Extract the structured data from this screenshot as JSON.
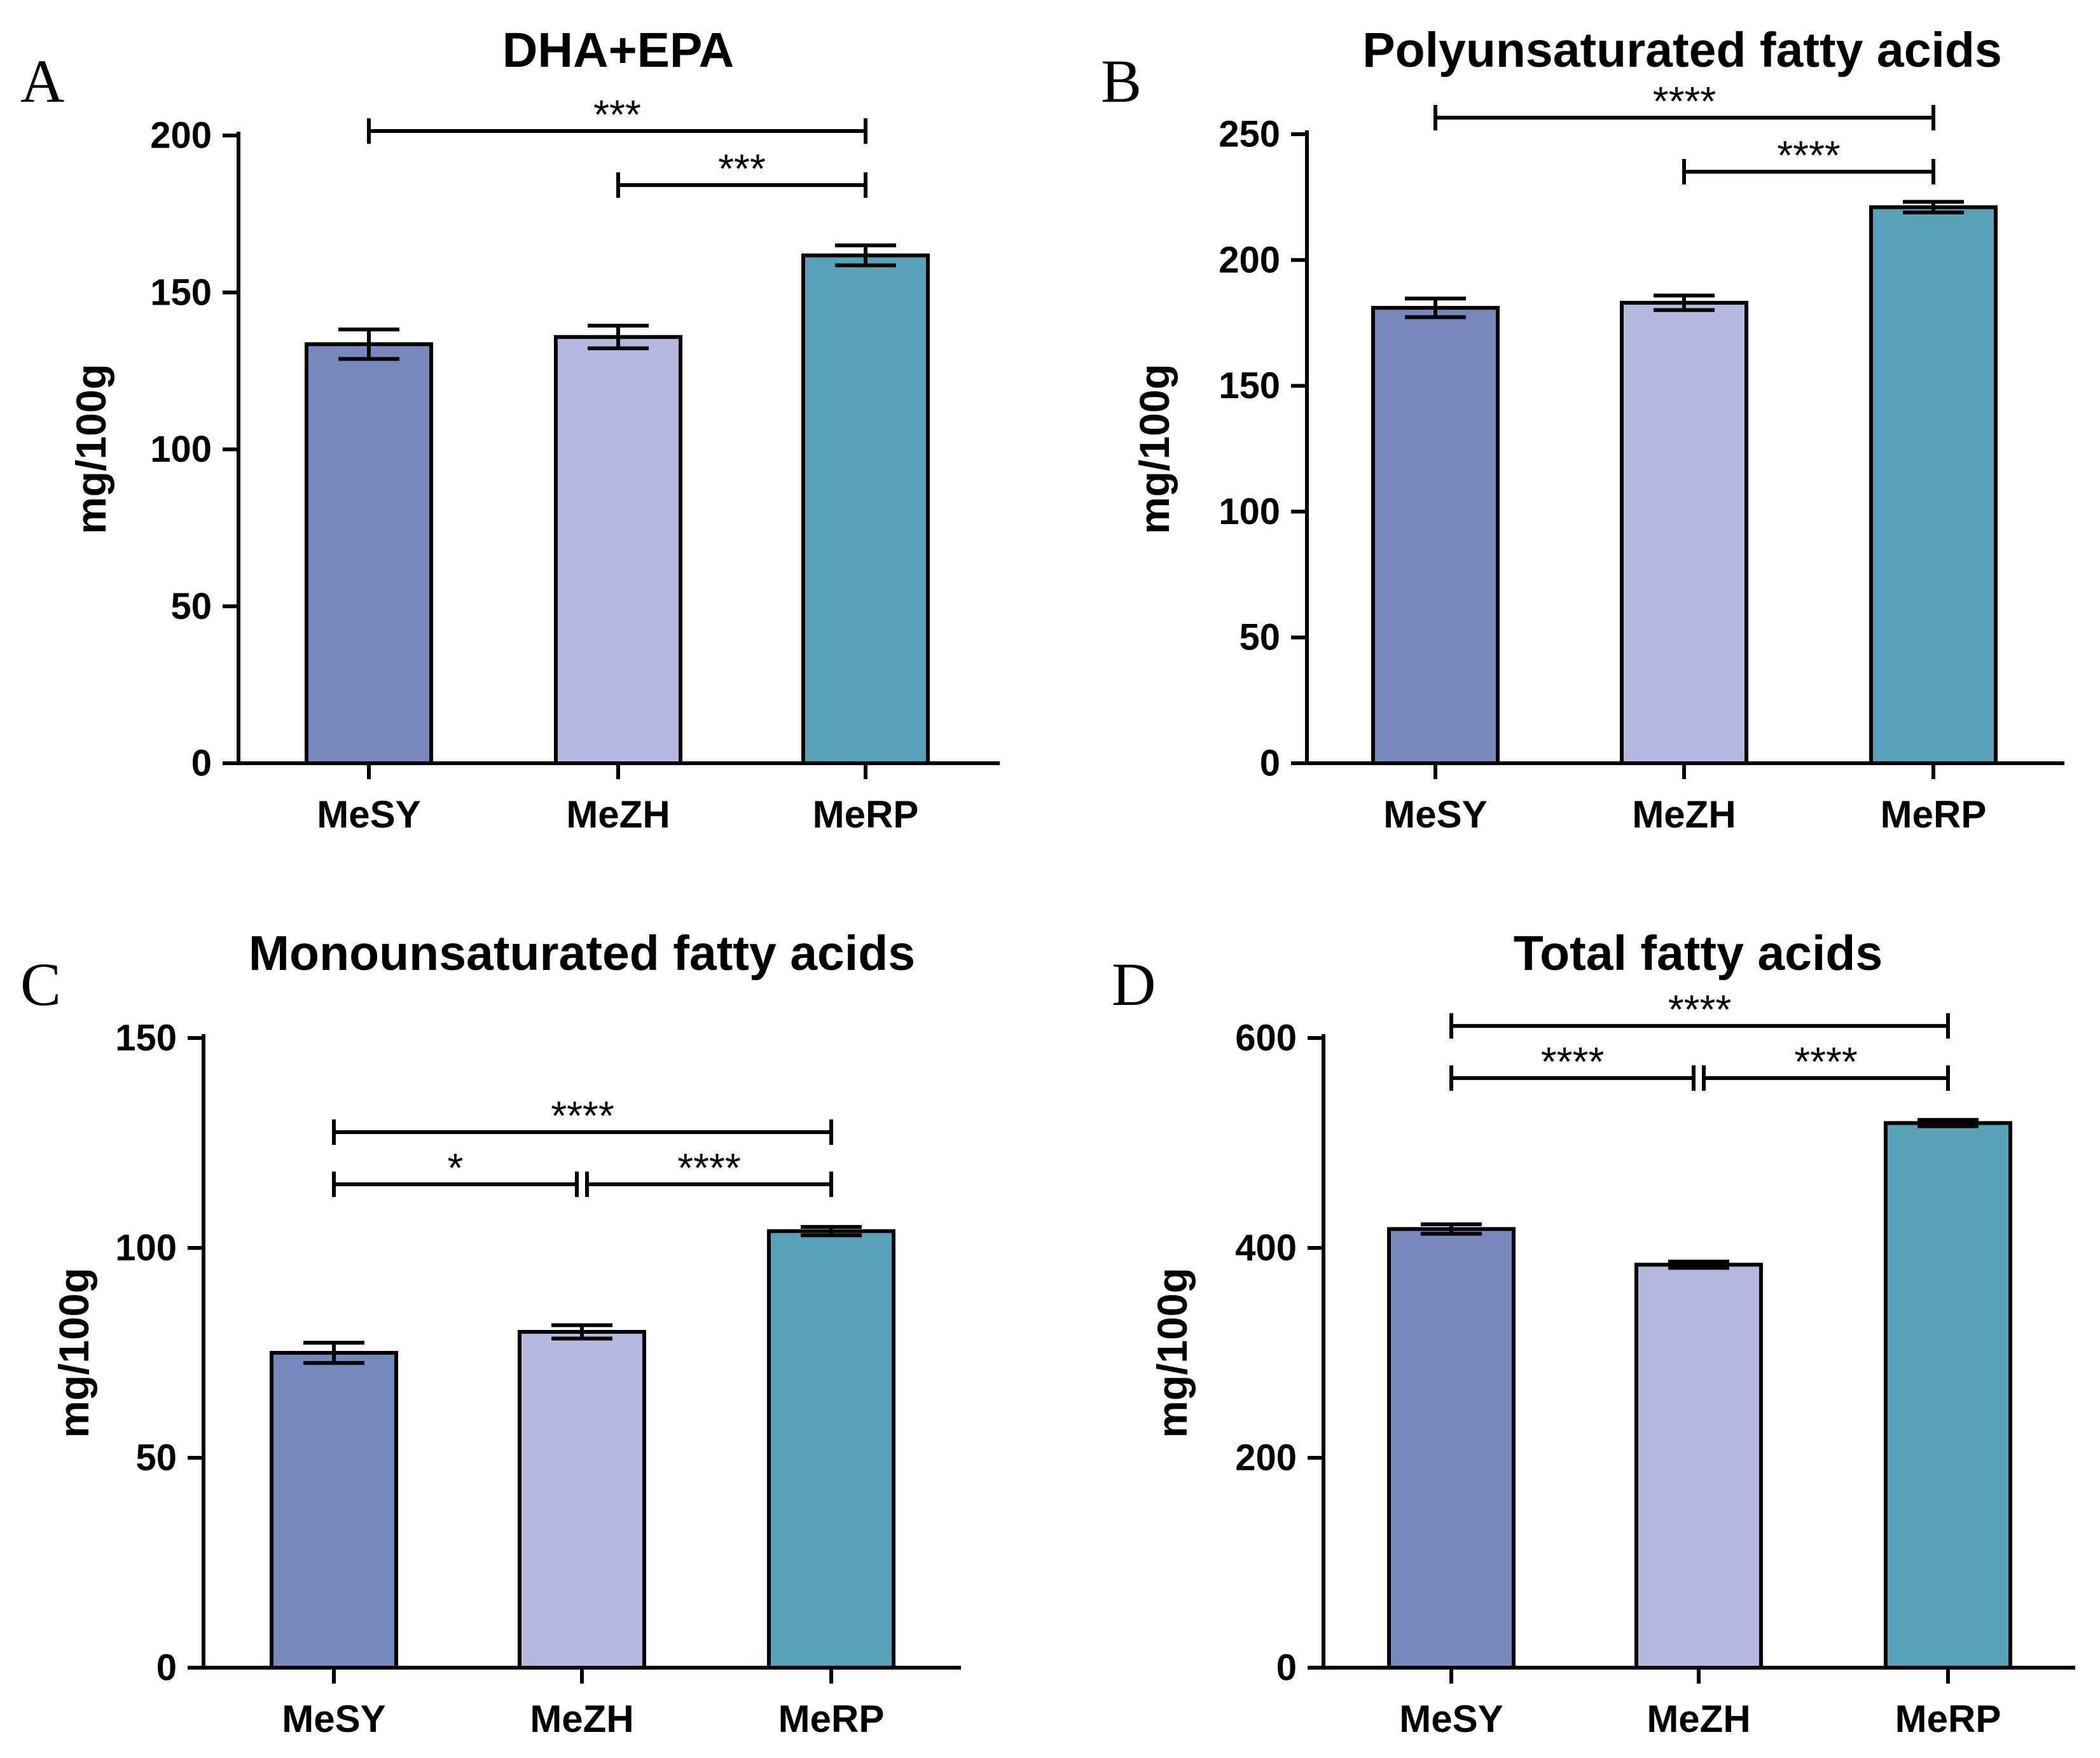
{
  "bar_colors": [
    "#7689BF",
    "#B6B8E0",
    "#56A2B8"
  ],
  "stroke_color": "#000000",
  "chart_data": [
    {
      "panel": "A",
      "type": "bar",
      "title": "DHA+EPA",
      "ylabel": "mg/100g",
      "categories": [
        "MeSY",
        "MeZH",
        "MeRP"
      ],
      "values": [
        133.5,
        135.8,
        161.8
      ],
      "errors": [
        4.7,
        3.6,
        3.2
      ],
      "ylim": [
        0,
        200
      ],
      "yticks": [
        0,
        50,
        100,
        150,
        200
      ],
      "significance": [
        {
          "between": [
            0,
            2
          ],
          "label": "***"
        },
        {
          "between": [
            1,
            2
          ],
          "label": "***"
        }
      ]
    },
    {
      "panel": "B",
      "type": "bar",
      "title": "Polyunsaturated fatty acids",
      "ylabel": "mg/100g",
      "categories": [
        "MeSY",
        "MeZH",
        "MeRP"
      ],
      "values": [
        181,
        183,
        221
      ],
      "errors": [
        3.7,
        2.9,
        2.1
      ],
      "ylim": [
        0,
        250
      ],
      "yticks": [
        0,
        50,
        100,
        150,
        200,
        250
      ],
      "significance": [
        {
          "between": [
            0,
            2
          ],
          "label": "****"
        },
        {
          "between": [
            1,
            2
          ],
          "label": "****"
        }
      ]
    },
    {
      "panel": "C",
      "type": "bar",
      "title": "Monounsaturated fatty acids",
      "ylabel": "mg/100g",
      "categories": [
        "MeSY",
        "MeZH",
        "MeRP"
      ],
      "values": [
        75,
        80,
        104
      ],
      "errors": [
        2.4,
        1.6,
        1.0
      ],
      "ylim": [
        0,
        150
      ],
      "yticks": [
        0,
        50,
        100,
        150
      ],
      "significance": [
        {
          "between": [
            0,
            2
          ],
          "label": "****"
        },
        {
          "between": [
            0,
            1
          ],
          "label": "*"
        },
        {
          "between": [
            1,
            2
          ],
          "label": "****"
        }
      ]
    },
    {
      "panel": "D",
      "type": "bar",
      "title": "Total fatty acids",
      "ylabel": "mg/100g",
      "categories": [
        "MeSY",
        "MeZH",
        "MeRP"
      ],
      "values": [
        418,
        384,
        519
      ],
      "errors": [
        4.5,
        3,
        3
      ],
      "ylim": [
        0,
        600
      ],
      "yticks": [
        0,
        200,
        400,
        600
      ],
      "significance": [
        {
          "between": [
            0,
            2
          ],
          "label": "****"
        },
        {
          "between": [
            0,
            1
          ],
          "label": "****"
        },
        {
          "between": [
            1,
            2
          ],
          "label": "****"
        }
      ]
    }
  ]
}
